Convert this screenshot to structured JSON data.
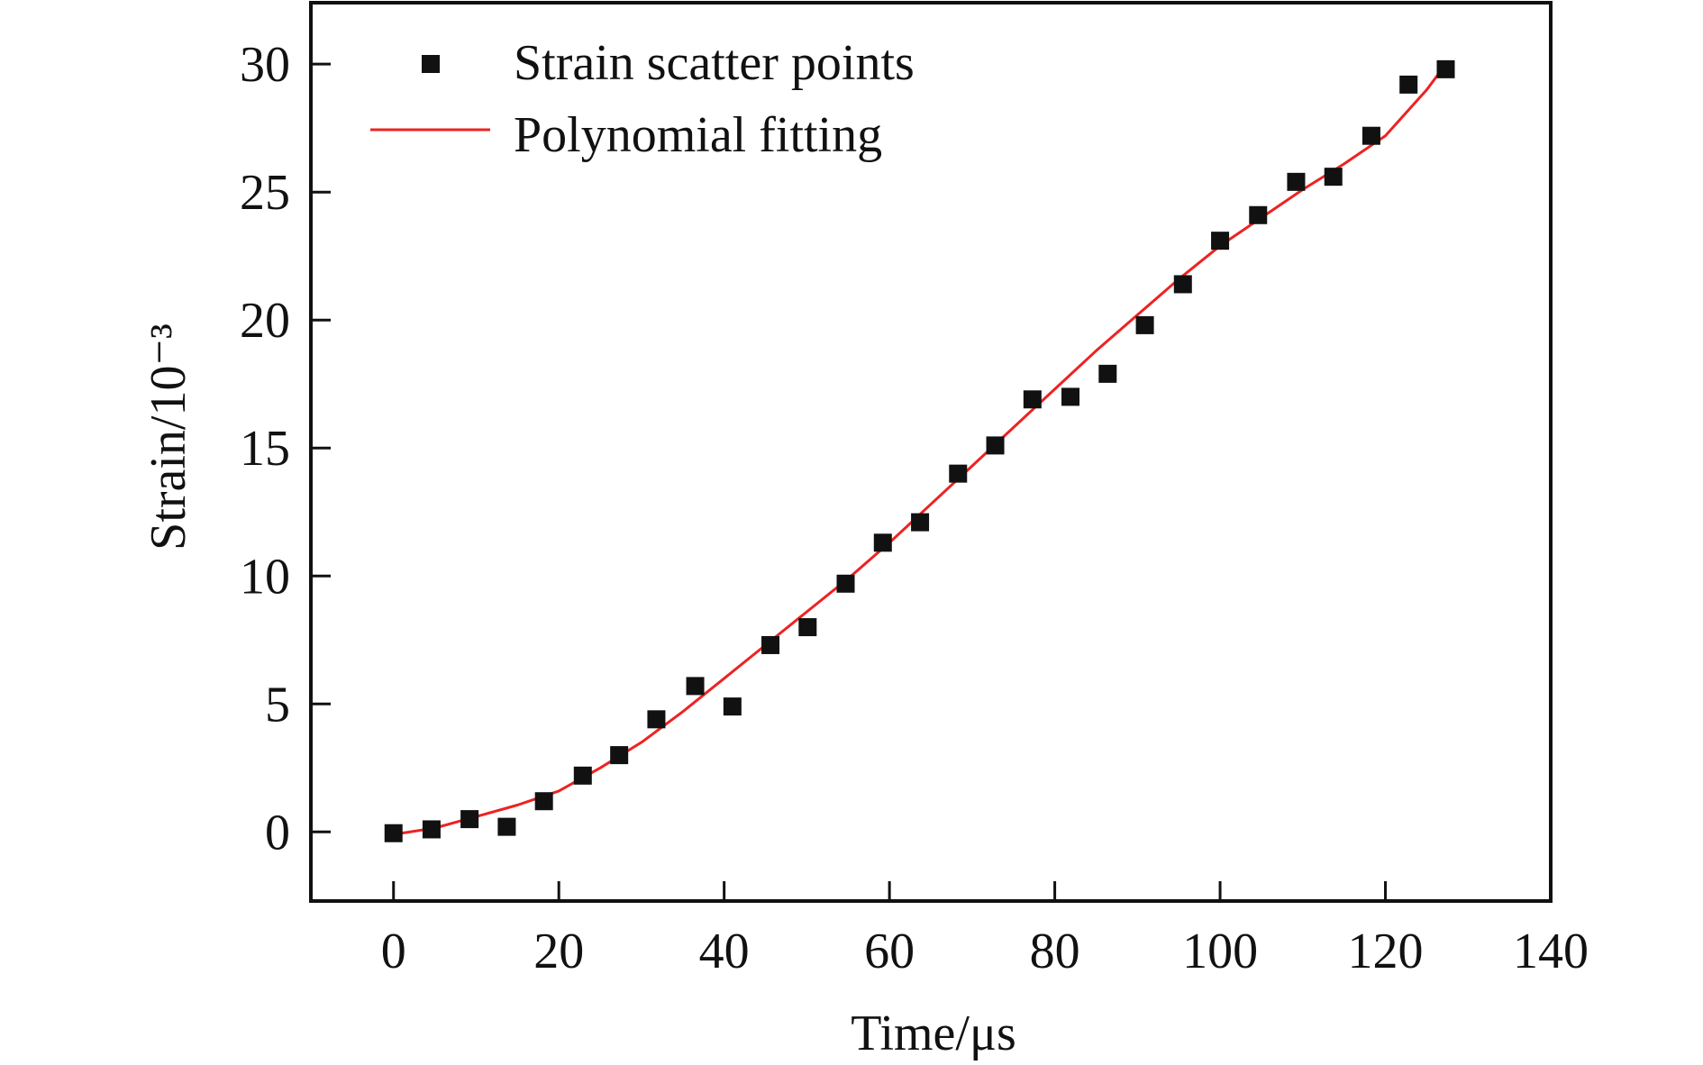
{
  "chart_data": {
    "type": "scatter",
    "title": "",
    "xlabel": "Time/μs",
    "ylabel": "Strain/10⁻³",
    "xlim": [
      -10,
      140
    ],
    "ylim": [
      -2.7,
      32.4
    ],
    "xticks": [
      0,
      20,
      40,
      60,
      80,
      100,
      120,
      140
    ],
    "yticks": [
      0,
      5,
      10,
      15,
      20,
      25,
      30
    ],
    "grid": false,
    "legend_position": "top-left",
    "colors": {
      "scatter": "#111111",
      "fit": "#ee2222",
      "axes": "#111111"
    },
    "series": [
      {
        "name": "Strain scatter points",
        "type": "scatter",
        "marker": "square",
        "x": [
          0,
          4.6,
          9.2,
          13.7,
          18.2,
          22.9,
          27.3,
          31.8,
          36.5,
          41.0,
          45.6,
          50.1,
          54.7,
          59.2,
          63.7,
          68.3,
          72.8,
          77.3,
          81.9,
          86.4,
          90.9,
          95.5,
          100.0,
          104.6,
          109.2,
          113.7,
          118.3,
          122.8,
          127.3
        ],
        "y": [
          -0.05,
          0.1,
          0.5,
          0.2,
          1.2,
          2.2,
          3.0,
          4.4,
          5.7,
          4.9,
          7.3,
          8.0,
          9.7,
          11.3,
          12.1,
          14.0,
          15.1,
          16.9,
          17.0,
          17.9,
          19.8,
          21.4,
          23.1,
          24.1,
          25.4,
          25.6,
          27.2,
          29.2,
          29.8
        ]
      },
      {
        "name": "Polynomial fitting",
        "type": "line",
        "x": [
          0,
          5,
          10,
          15,
          20,
          25,
          30,
          35,
          40,
          45,
          50,
          55,
          60,
          65,
          70,
          75,
          80,
          85,
          90,
          95,
          100,
          105,
          110,
          115,
          120,
          125,
          127.3
        ],
        "y": [
          -0.1,
          0.15,
          0.6,
          1.05,
          1.6,
          2.5,
          3.5,
          4.7,
          6.0,
          7.3,
          8.6,
          9.9,
          11.3,
          12.8,
          14.3,
          15.8,
          17.3,
          18.8,
          20.2,
          21.6,
          22.9,
          24.0,
          25.1,
          26.1,
          27.2,
          29.0,
          30.0
        ]
      }
    ]
  }
}
